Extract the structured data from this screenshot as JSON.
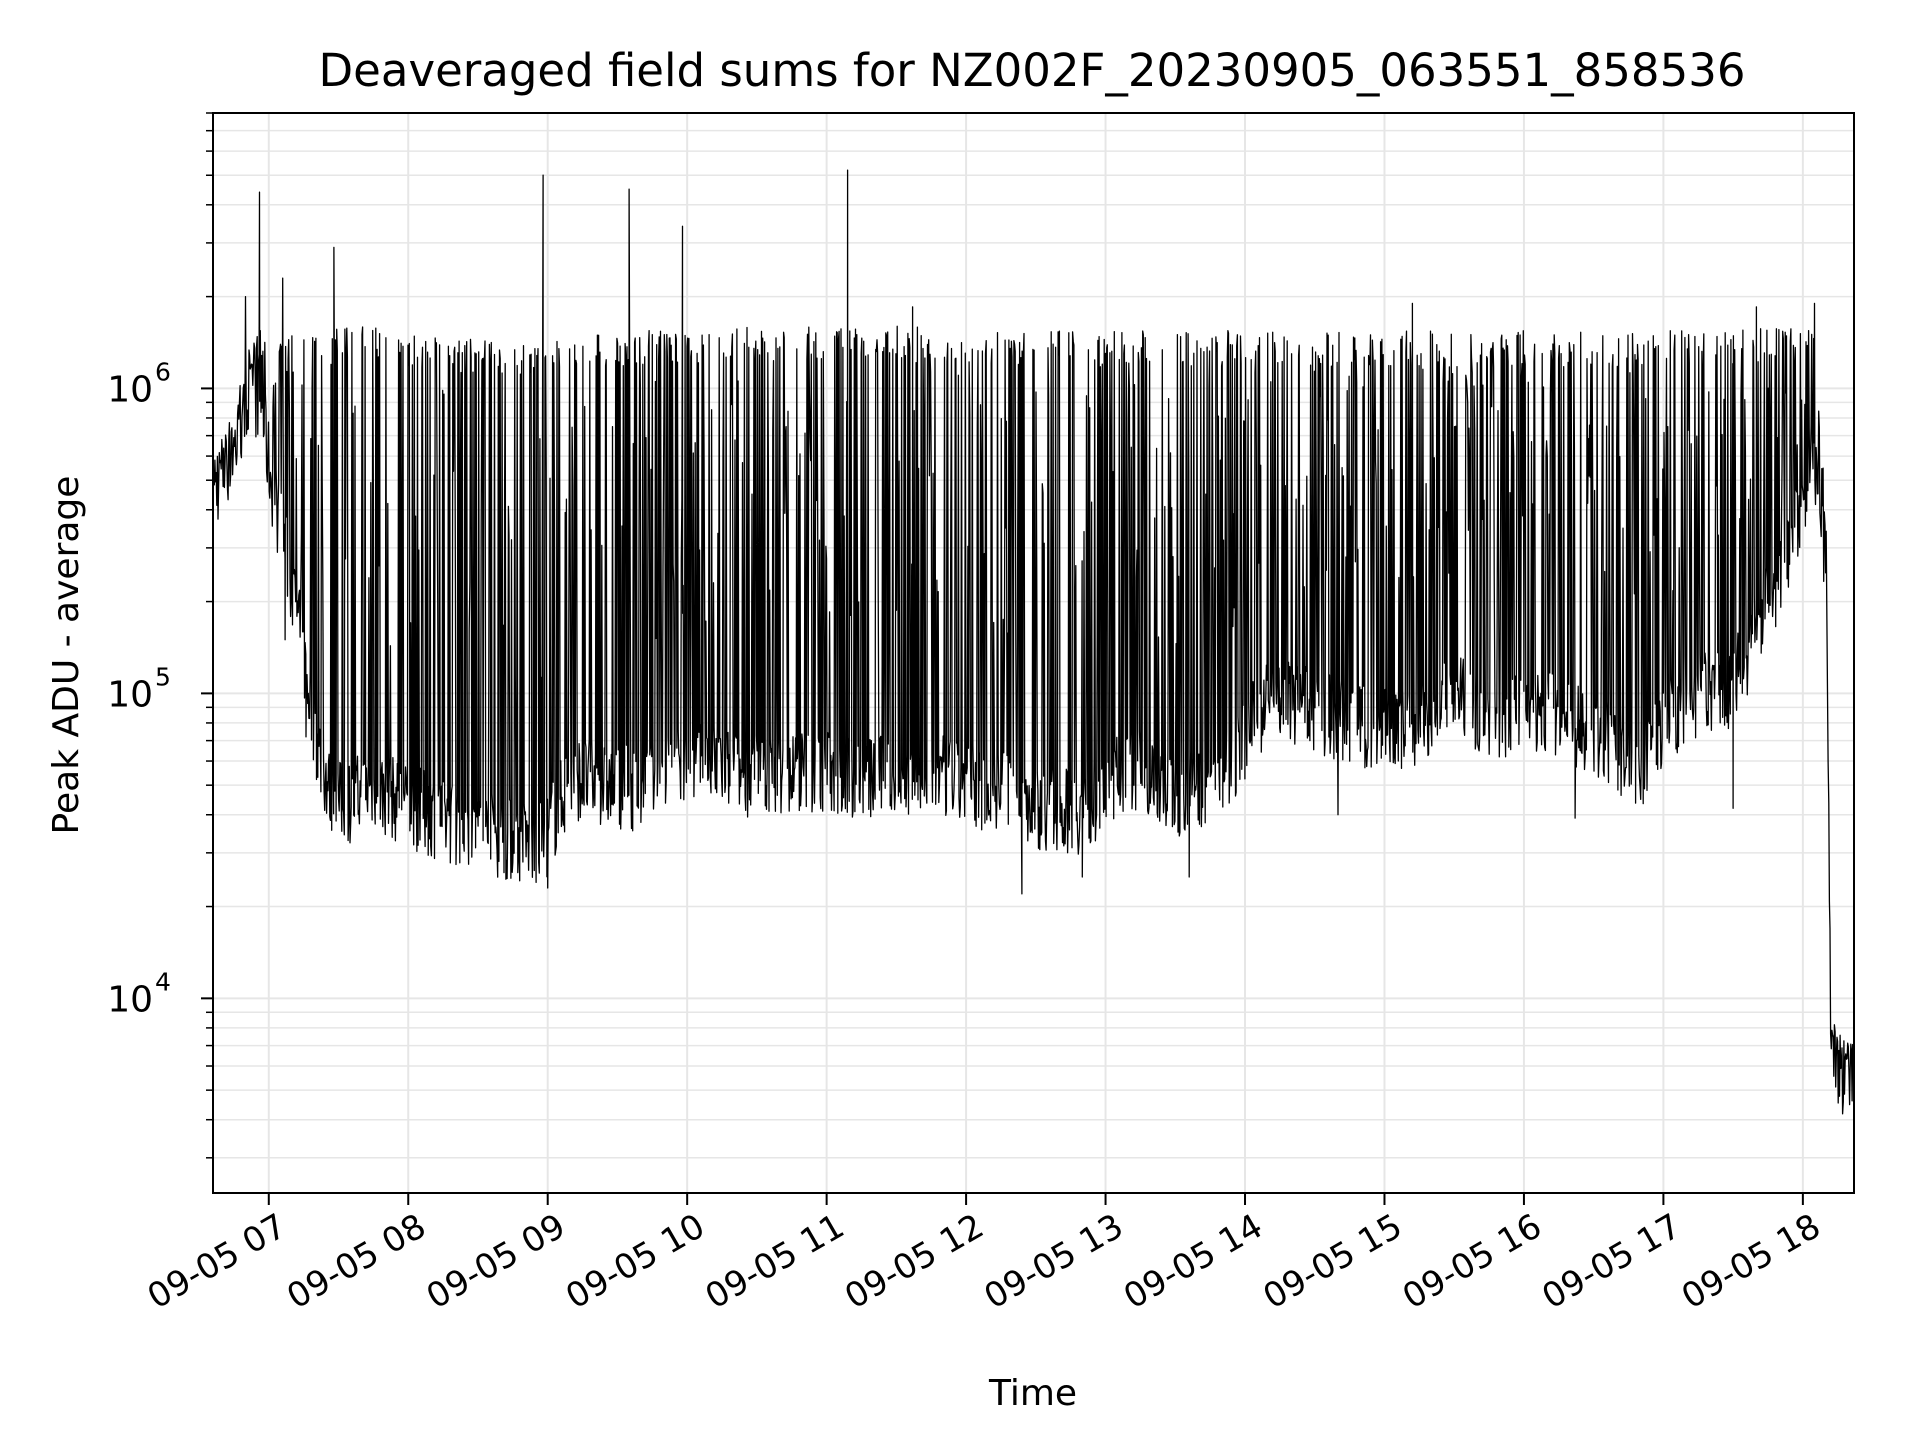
{
  "chart_data": {
    "type": "line",
    "title": "Deaveraged field sums for NZ002F_20230905_063551_858536",
    "xlabel": "Time",
    "ylabel": "Peak ADU - average",
    "x_scale": "time",
    "y_scale": "log",
    "xlim": [
      "2023-09-05 06:36",
      "2023-09-05 18:22"
    ],
    "ylim": [
      2300,
      8000000
    ],
    "grid": true,
    "line_color": "#000000",
    "grid_color": "#e6e6e6",
    "x_ticks": [
      {
        "value": "2023-09-05 07:00",
        "label": "09-05 07"
      },
      {
        "value": "2023-09-05 08:00",
        "label": "09-05 08"
      },
      {
        "value": "2023-09-05 09:00",
        "label": "09-05 09"
      },
      {
        "value": "2023-09-05 10:00",
        "label": "09-05 10"
      },
      {
        "value": "2023-09-05 11:00",
        "label": "09-05 11"
      },
      {
        "value": "2023-09-05 12:00",
        "label": "09-05 12"
      },
      {
        "value": "2023-09-05 13:00",
        "label": "09-05 13"
      },
      {
        "value": "2023-09-05 14:00",
        "label": "09-05 14"
      },
      {
        "value": "2023-09-05 15:00",
        "label": "09-05 15"
      },
      {
        "value": "2023-09-05 16:00",
        "label": "09-05 16"
      },
      {
        "value": "2023-09-05 17:00",
        "label": "09-05 17"
      },
      {
        "value": "2023-09-05 18:00",
        "label": "09-05 18"
      }
    ],
    "y_ticks": [
      {
        "value": 10000,
        "label_base": "10",
        "label_exp": "4"
      },
      {
        "value": 100000,
        "label_base": "10",
        "label_exp": "5"
      },
      {
        "value": 1000000,
        "label_base": "10",
        "label_exp": "6"
      }
    ],
    "series": [
      {
        "x": [
          "2023-09-05 06:36",
          "2023-09-05 06:41",
          "2023-09-05 06:46",
          "2023-09-05 06:51",
          "2023-09-05 06:56",
          "2023-09-05 07:01",
          "2023-09-05 07:06",
          "2023-09-05 07:11",
          "2023-09-05 07:16",
          "2023-09-05 07:21",
          "2023-09-05 07:26",
          "2023-09-05 07:31",
          "2023-09-05 07:36",
          "2023-09-05 07:42",
          "2023-09-05 07:50",
          "2023-09-05 08:00",
          "2023-09-05 08:15",
          "2023-09-05 08:30",
          "2023-09-05 08:45",
          "2023-09-05 08:58",
          "2023-09-05 09:10",
          "2023-09-05 09:25",
          "2023-09-05 09:40",
          "2023-09-05 09:55",
          "2023-09-05 10:10",
          "2023-09-05 10:30",
          "2023-09-05 10:50",
          "2023-09-05 11:10",
          "2023-09-05 11:30",
          "2023-09-05 11:50",
          "2023-09-05 12:10",
          "2023-09-05 12:30",
          "2023-09-05 12:50",
          "2023-09-05 13:10",
          "2023-09-05 13:30",
          "2023-09-05 13:50",
          "2023-09-05 14:10",
          "2023-09-05 14:30",
          "2023-09-05 14:50",
          "2023-09-05 15:10",
          "2023-09-05 15:30",
          "2023-09-05 15:50",
          "2023-09-05 16:10",
          "2023-09-05 16:30",
          "2023-09-05 16:50",
          "2023-09-05 17:10",
          "2023-09-05 17:30",
          "2023-09-05 17:45",
          "2023-09-05 18:00",
          "2023-09-05 18:06",
          "2023-09-05 18:10",
          "2023-09-05 18:12",
          "2023-09-05 18:15",
          "2023-09-05 18:22"
        ],
        "base": [
          480000,
          560000,
          680000,
          900000,
          1000000,
          520000,
          330000,
          210000,
          120000,
          70000,
          50000,
          45000,
          46000,
          50000,
          48000,
          44000,
          40000,
          37000,
          34000,
          33000,
          55000,
          52000,
          50000,
          58000,
          60000,
          55000,
          58000,
          55000,
          54000,
          55000,
          50000,
          44000,
          42000,
          60000,
          48000,
          55000,
          100000,
          90000,
          80000,
          80000,
          100000,
          85000,
          90000,
          75000,
          60000,
          100000,
          110000,
          200000,
          420000,
          600000,
          260000,
          9000,
          6000,
          5500
        ],
        "peak": [
          600000,
          700000,
          900000,
          1400000,
          1900000,
          1200000,
          1450000,
          1500000,
          1550000,
          1500000,
          1550000,
          1600000,
          1600000,
          1600000,
          1600000,
          1500000,
          1500000,
          1450000,
          1400000,
          1450000,
          1550000,
          1550000,
          1550000,
          1550000,
          1600000,
          1600000,
          1600000,
          1600000,
          1600000,
          1600000,
          1550000,
          1550000,
          1550000,
          1550000,
          1550000,
          1550000,
          1550000,
          1550000,
          1550000,
          1550000,
          1550000,
          1550000,
          1550000,
          1550000,
          1550000,
          1550000,
          1550000,
          1600000,
          1650000,
          1600000,
          400000,
          9000,
          8000,
          7000
        ],
        "spikes": [
          {
            "x": "2023-09-05 06:50",
            "y": 2000000
          },
          {
            "x": "2023-09-05 06:56",
            "y": 4400000
          },
          {
            "x": "2023-09-05 07:06",
            "y": 2300000
          },
          {
            "x": "2023-09-05 07:28",
            "y": 2900000
          },
          {
            "x": "2023-09-05 08:58",
            "y": 5000000
          },
          {
            "x": "2023-09-05 09:35",
            "y": 4500000
          },
          {
            "x": "2023-09-05 09:58",
            "y": 3400000
          },
          {
            "x": "2023-09-05 11:09",
            "y": 5200000
          },
          {
            "x": "2023-09-05 11:37",
            "y": 1850000
          },
          {
            "x": "2023-09-05 15:12",
            "y": 1900000
          },
          {
            "x": "2023-09-05 17:40",
            "y": 1850000
          },
          {
            "x": "2023-09-05 18:05",
            "y": 1900000
          }
        ],
        "dips": [
          {
            "x": "2023-09-05 07:07",
            "y": 150000
          },
          {
            "x": "2023-09-05 07:16",
            "y": 72000
          },
          {
            "x": "2023-09-05 08:55",
            "y": 24000
          },
          {
            "x": "2023-09-05 09:00",
            "y": 23000
          },
          {
            "x": "2023-09-05 12:24",
            "y": 22000
          },
          {
            "x": "2023-09-05 12:50",
            "y": 25000
          },
          {
            "x": "2023-09-05 13:36",
            "y": 25000
          },
          {
            "x": "2023-09-05 14:40",
            "y": 40000
          },
          {
            "x": "2023-09-05 16:22",
            "y": 39000
          },
          {
            "x": "2023-09-05 17:30",
            "y": 42000
          },
          {
            "x": "2023-09-05 18:22",
            "y": 3300
          }
        ]
      }
    ]
  }
}
